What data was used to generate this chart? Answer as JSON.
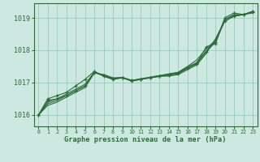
{
  "background_color": "#cce8e0",
  "grid_color": "#99ccbb",
  "line_color": "#2d6b3a",
  "title": "Graphe pression niveau de la mer (hPa)",
  "xlim": [
    -0.5,
    23.5
  ],
  "ylim": [
    1015.65,
    1019.45
  ],
  "yticks": [
    1016,
    1017,
    1018,
    1019
  ],
  "xticks": [
    0,
    1,
    2,
    3,
    4,
    5,
    6,
    7,
    8,
    9,
    10,
    11,
    12,
    13,
    14,
    15,
    16,
    17,
    18,
    19,
    20,
    21,
    22,
    23
  ],
  "series": [
    {
      "x": [
        0,
        1,
        2,
        3,
        4,
        5,
        6,
        7,
        8,
        9,
        10,
        11,
        12,
        13,
        14,
        15,
        16,
        17,
        18,
        19,
        20,
        21,
        22,
        23
      ],
      "y": [
        1016.0,
        1016.5,
        1016.6,
        1016.7,
        1016.9,
        1017.1,
        1017.35,
        1017.2,
        1017.1,
        1017.15,
        1017.05,
        1017.1,
        1017.15,
        1017.2,
        1017.25,
        1017.3,
        1017.45,
        1017.6,
        1018.1,
        1018.2,
        1019.0,
        1019.15,
        1019.1,
        1019.2
      ],
      "marker": true
    },
    {
      "x": [
        0,
        1,
        2,
        3,
        4,
        5,
        6,
        7,
        8,
        9,
        10,
        11,
        12,
        13,
        14,
        15,
        16,
        17,
        18,
        19,
        20,
        21,
        22,
        23
      ],
      "y": [
        1016.0,
        1016.3,
        1016.4,
        1016.55,
        1016.7,
        1016.85,
        1017.3,
        1017.25,
        1017.15,
        1017.15,
        1017.05,
        1017.1,
        1017.15,
        1017.2,
        1017.2,
        1017.25,
        1017.4,
        1017.55,
        1017.9,
        1018.35,
        1018.9,
        1019.05,
        1019.1,
        1019.15
      ],
      "marker": false
    },
    {
      "x": [
        0,
        1,
        2,
        3,
        4,
        5,
        6,
        7,
        8,
        9,
        10,
        11,
        12,
        13,
        14,
        15,
        16,
        17,
        18,
        19,
        20,
        21,
        22,
        23
      ],
      "y": [
        1016.0,
        1016.4,
        1016.5,
        1016.65,
        1016.8,
        1016.95,
        1017.32,
        1017.2,
        1017.1,
        1017.15,
        1017.07,
        1017.12,
        1017.17,
        1017.22,
        1017.27,
        1017.32,
        1017.5,
        1017.7,
        1018.05,
        1018.3,
        1018.95,
        1019.1,
        1019.1,
        1019.2
      ],
      "marker": false
    },
    {
      "x": [
        0,
        1,
        2,
        3,
        4,
        5,
        6,
        7,
        8,
        9,
        10,
        11,
        12,
        13,
        14,
        15,
        16,
        17,
        18,
        19,
        20,
        21,
        22,
        23
      ],
      "y": [
        1016.0,
        1016.35,
        1016.45,
        1016.6,
        1016.75,
        1016.9,
        1017.33,
        1017.22,
        1017.12,
        1017.16,
        1017.06,
        1017.11,
        1017.16,
        1017.21,
        1017.26,
        1017.31,
        1017.48,
        1017.62,
        1017.98,
        1018.3,
        1018.95,
        1019.08,
        1019.1,
        1019.18
      ],
      "marker": false
    },
    {
      "x": [
        0,
        1,
        2,
        3,
        4,
        5,
        6,
        7,
        8,
        9,
        10,
        11,
        12,
        13,
        14,
        15,
        16,
        17,
        18,
        19,
        20,
        21,
        22,
        23
      ],
      "y": [
        1016.0,
        1016.45,
        1016.5,
        1016.6,
        1016.75,
        1016.9,
        1017.31,
        1017.23,
        1017.13,
        1017.16,
        1017.07,
        1017.11,
        1017.15,
        1017.19,
        1017.23,
        1017.27,
        1017.44,
        1017.58,
        1017.95,
        1018.25,
        1018.9,
        1019.05,
        1019.1,
        1019.18
      ],
      "marker": true
    }
  ]
}
